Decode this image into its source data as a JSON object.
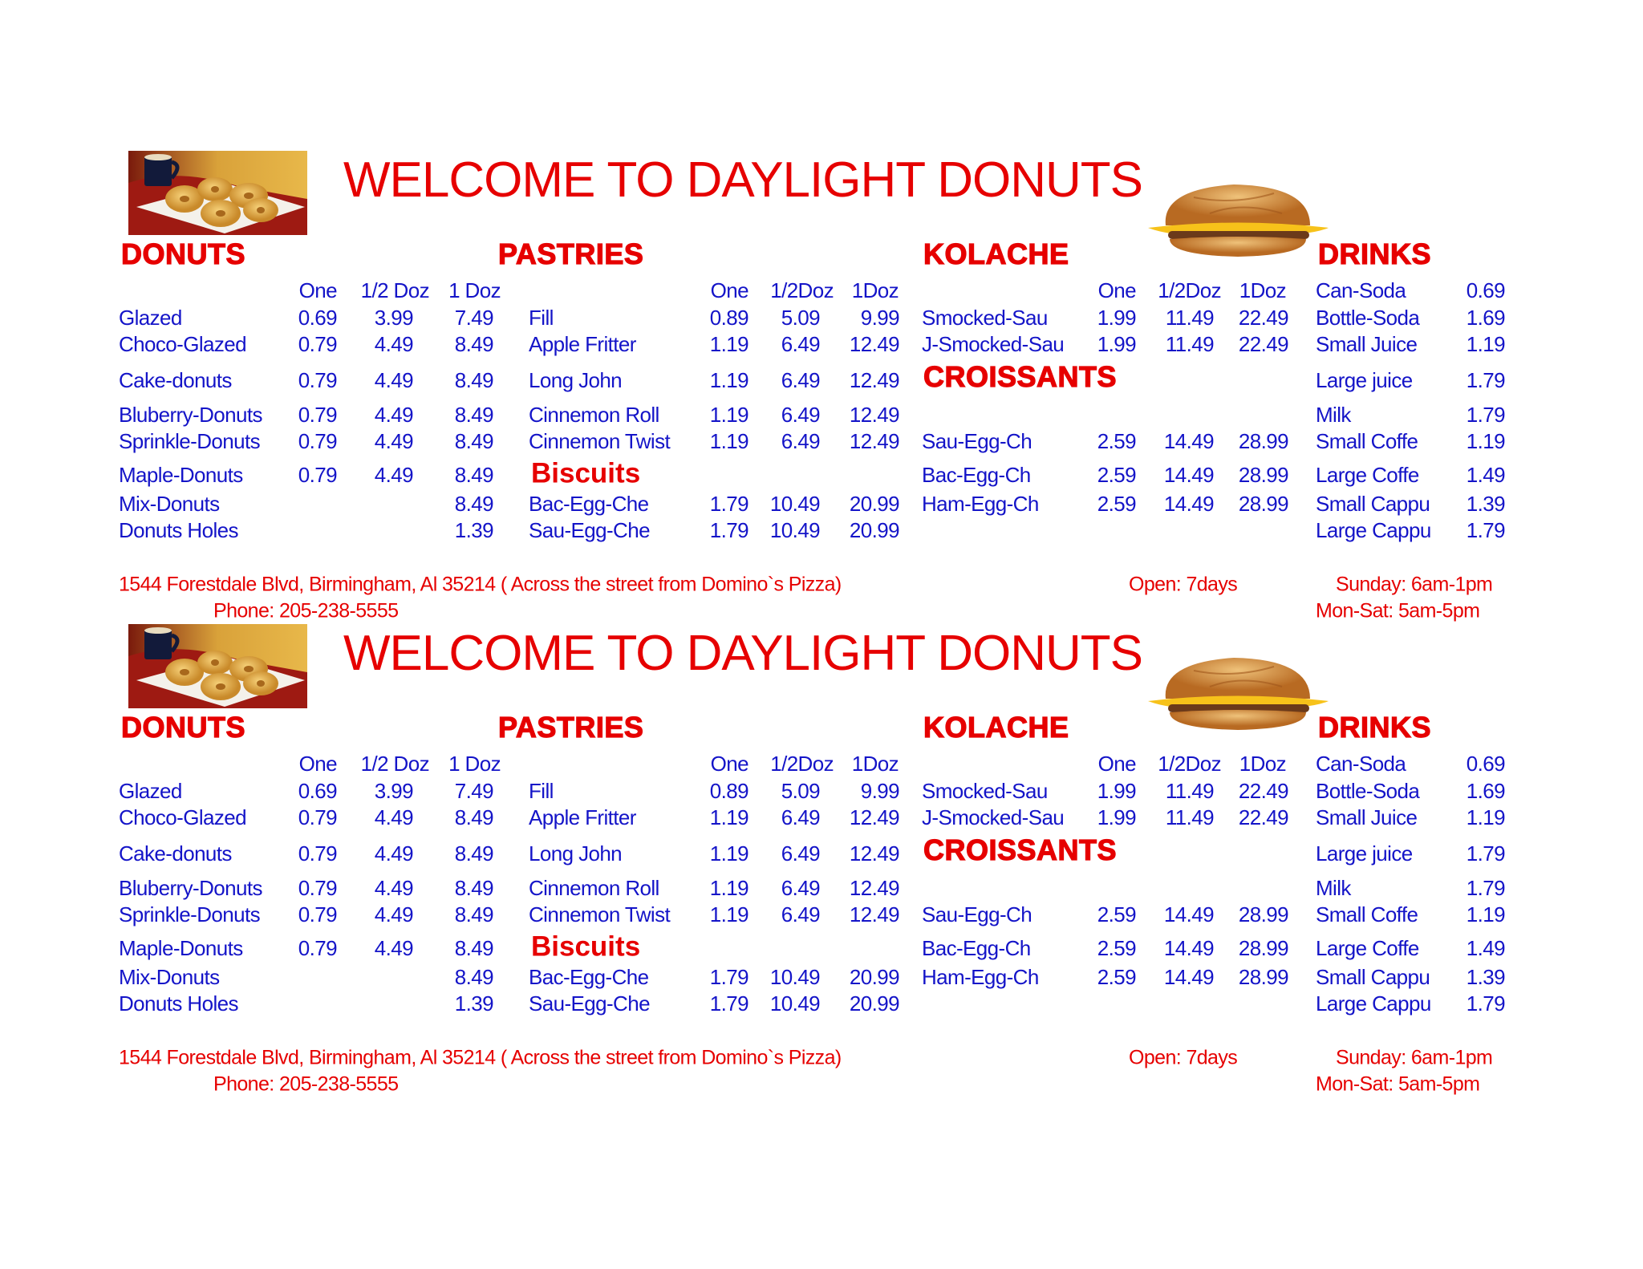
{
  "menu": {
    "title": "WELCOME TO DAYLIGHT DONUTS",
    "colors": {
      "heading": "#e60000",
      "items": "#1414c8"
    },
    "images": {
      "left": "donuts-with-coffee-photo",
      "right": "croissant-sandwich-photo"
    },
    "donuts": {
      "heading": "DONUTS",
      "columns": [
        "One",
        "1/2 Doz",
        "1 Doz"
      ],
      "items": [
        {
          "name": "Glazed",
          "one": "0.69",
          "half": "3.99",
          "doz": "7.49"
        },
        {
          "name": "Choco-Glazed",
          "one": "0.79",
          "half": "4.49",
          "doz": "8.49"
        },
        {
          "name": "Cake-donuts",
          "one": "0.79",
          "half": "4.49",
          "doz": "8.49"
        },
        {
          "name": "Bluberry-Donuts",
          "one": "0.79",
          "half": "4.49",
          "doz": "8.49"
        },
        {
          "name": "Sprinkle-Donuts",
          "one": "0.79",
          "half": "4.49",
          "doz": "8.49"
        },
        {
          "name": "Maple-Donuts",
          "one": "0.79",
          "half": "4.49",
          "doz": "8.49"
        },
        {
          "name": "Mix-Donuts",
          "doz": "8.49"
        },
        {
          "name": "Donuts Holes",
          "doz": "1.39"
        }
      ]
    },
    "pastries": {
      "heading": "PASTRIES",
      "columns": [
        "One",
        "1/2Doz",
        "1Doz"
      ],
      "items": [
        {
          "name": "Fill",
          "one": "0.89",
          "half": "5.09",
          "doz": "9.99"
        },
        {
          "name": "Apple Fritter",
          "one": "1.19",
          "half": "6.49",
          "doz": "12.49"
        },
        {
          "name": "Long John",
          "one": "1.19",
          "half": "6.49",
          "doz": "12.49"
        },
        {
          "name": "Cinnemon Roll",
          "one": "1.19",
          "half": "6.49",
          "doz": "12.49"
        },
        {
          "name": "Cinnemon Twist",
          "one": "1.19",
          "half": "6.49",
          "doz": "12.49"
        }
      ]
    },
    "biscuits": {
      "heading": "Biscuits",
      "items": [
        {
          "name": "Bac-Egg-Che",
          "one": "1.79",
          "half": "10.49",
          "doz": "20.99"
        },
        {
          "name": "Sau-Egg-Che",
          "one": "1.79",
          "half": "10.49",
          "doz": "20.99"
        }
      ]
    },
    "kolache": {
      "heading": "KOLACHE",
      "columns": [
        "One",
        "1/2Doz",
        "1Doz"
      ],
      "items": [
        {
          "name": "Smocked-Sau",
          "one": "1.99",
          "half": "11.49",
          "doz": "22.49"
        },
        {
          "name": "J-Smocked-Sau",
          "one": "1.99",
          "half": "11.49",
          "doz": "22.49"
        }
      ]
    },
    "croissants": {
      "heading": "CROISSANTS",
      "items": [
        {
          "name": "Sau-Egg-Ch",
          "one": "2.59",
          "half": "14.49",
          "doz": "28.99"
        },
        {
          "name": "Bac-Egg-Ch",
          "one": "2.59",
          "half": "14.49",
          "doz": "28.99"
        },
        {
          "name": "Ham-Egg-Ch",
          "one": "2.59",
          "half": "14.49",
          "doz": "28.99"
        }
      ]
    },
    "drinks": {
      "heading": "DRINKS",
      "items": [
        {
          "name": "Can-Soda",
          "price": "0.69"
        },
        {
          "name": "Bottle-Soda",
          "price": "1.69"
        },
        {
          "name": "Small Juice",
          "price": "1.19"
        },
        {
          "name": "Large juice",
          "price": "1.79"
        },
        {
          "name": "Milk",
          "price": "1.79"
        },
        {
          "name": "Small Coffe",
          "price": "1.19"
        },
        {
          "name": "Large Coffe",
          "price": "1.49"
        },
        {
          "name": "Small Cappu",
          "price": "1.39"
        },
        {
          "name": "Large Cappu",
          "price": "1.79"
        }
      ]
    },
    "footer": {
      "address": "1544 Forestdale Blvd, Birmingham, Al  35214  ( Across the street from Domino`s Pizza)",
      "phone": "Phone: 205-238-5555",
      "open": "Open: 7days",
      "sunday": "Sunday: 6am-1pm",
      "monsat": "Mon-Sat: 5am-5pm"
    }
  }
}
